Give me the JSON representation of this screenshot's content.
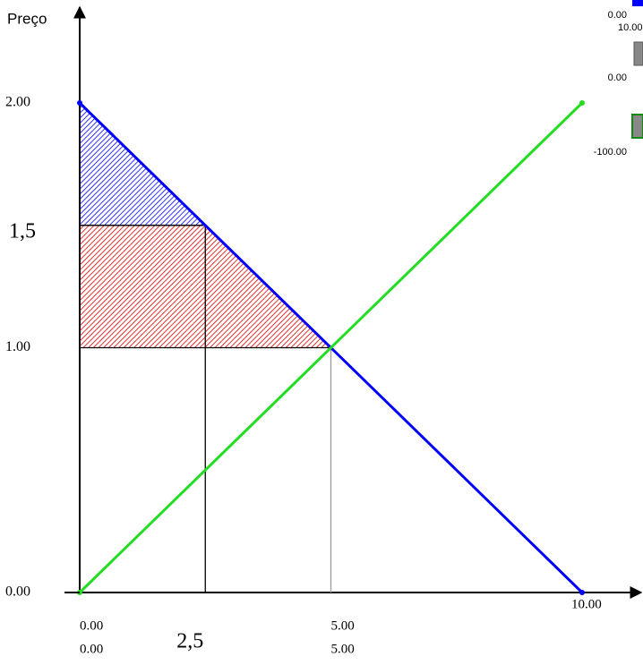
{
  "chart_data": {
    "type": "line",
    "y_label": "Preço",
    "xlim": [
      0,
      10
    ],
    "ylim": [
      0,
      2
    ],
    "xticks": [
      {
        "value": 0,
        "label": "0.00"
      },
      {
        "value": 2.5,
        "label": "2,5"
      },
      {
        "value": 5,
        "label": "5.00"
      },
      {
        "value": 10,
        "label": "10.00"
      }
    ],
    "xticks2": [
      {
        "value": 0,
        "label": "0.00"
      },
      {
        "value": 5,
        "label": "5.00"
      }
    ],
    "yticks": [
      {
        "value": 0,
        "label": "0.00"
      },
      {
        "value": 1,
        "label": "1.00"
      },
      {
        "value": 1.5,
        "label": "1,5"
      },
      {
        "value": 2,
        "label": "2.00"
      }
    ],
    "series": [
      {
        "color": "#0000ff",
        "x": [
          0,
          10
        ],
        "values": [
          2,
          0
        ]
      },
      {
        "color": "#22dd22",
        "x": [
          0,
          10
        ],
        "values": [
          0,
          2
        ]
      }
    ],
    "regions": [
      {
        "color": "#0000ff",
        "x": [
          0,
          0,
          2.5
        ],
        "y": [
          2,
          1.5,
          1.5
        ]
      },
      {
        "color": "#dd0000",
        "x": [
          0,
          2.5,
          5,
          0
        ],
        "y": [
          1.5,
          1.5,
          1,
          1
        ]
      }
    ],
    "guides": [
      {
        "color": "#000000",
        "x": [
          2.5,
          2.5
        ],
        "y": [
          0,
          1.5
        ]
      },
      {
        "color": "#999999",
        "x": [
          5,
          5
        ],
        "y": [
          0,
          1
        ]
      }
    ]
  },
  "widgets": {
    "labels": [
      "0.00",
      "10.00",
      "0.00",
      "-100.00"
    ]
  }
}
